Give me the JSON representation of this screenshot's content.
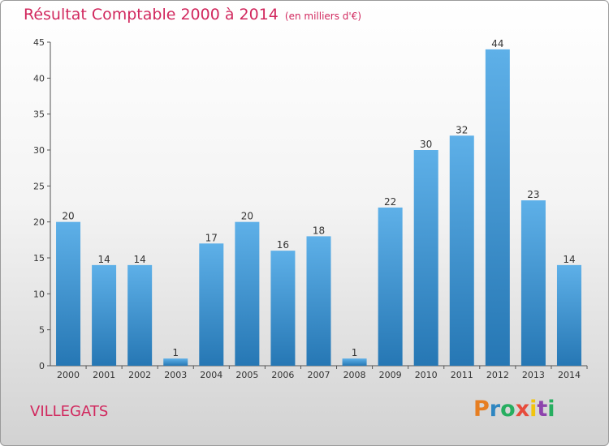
{
  "title": "Résultat Comptable 2000 à 2014",
  "subtitle": "(en milliers d'€)",
  "place": "VILLEGATS",
  "logo": {
    "letters": [
      "P",
      "r",
      "o",
      "x",
      "i",
      "t",
      "i"
    ],
    "colors": [
      "#e67e22",
      "#2e86c1",
      "#27ae60",
      "#e74c3c",
      "#f1c40f",
      "#8e44ad",
      "#27ae60"
    ]
  },
  "colors": {
    "bar_light": "#5eb0e8",
    "bar_dark": "#2677b4",
    "title": "#d1285e"
  },
  "chart_data": {
    "type": "bar",
    "categories": [
      "2000",
      "2001",
      "2002",
      "2003",
      "2004",
      "2005",
      "2006",
      "2007",
      "2008",
      "2009",
      "2010",
      "2011",
      "2012",
      "2013",
      "2014"
    ],
    "values": [
      20,
      14,
      14,
      1,
      17,
      20,
      16,
      18,
      1,
      22,
      30,
      32,
      44,
      23,
      14
    ],
    "ylim": [
      0,
      45
    ],
    "yticks": [
      0,
      5,
      10,
      15,
      20,
      25,
      30,
      35,
      40,
      45
    ],
    "grid": false,
    "data_labels": true
  }
}
